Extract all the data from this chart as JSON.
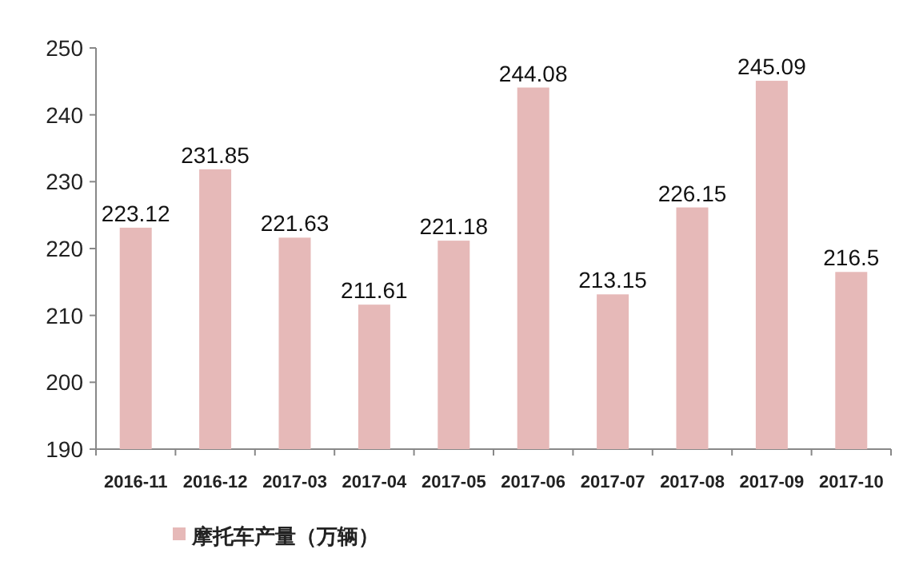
{
  "chart_data": {
    "type": "bar",
    "categories": [
      "2016-11",
      "2016-12",
      "2017-03",
      "2017-04",
      "2017-05",
      "2017-06",
      "2017-07",
      "2017-08",
      "2017-09",
      "2017-10"
    ],
    "series": [
      {
        "name": "摩托车产量（万辆）",
        "color": "#e6b9b8",
        "values": [
          223.12,
          231.85,
          221.63,
          211.61,
          221.18,
          244.08,
          213.15,
          226.15,
          245.09,
          216.5
        ]
      }
    ],
    "ylim": [
      190,
      250
    ],
    "yticks": [
      190,
      200,
      210,
      220,
      230,
      240,
      250
    ],
    "data_labels": true,
    "legend": "bottom left"
  }
}
